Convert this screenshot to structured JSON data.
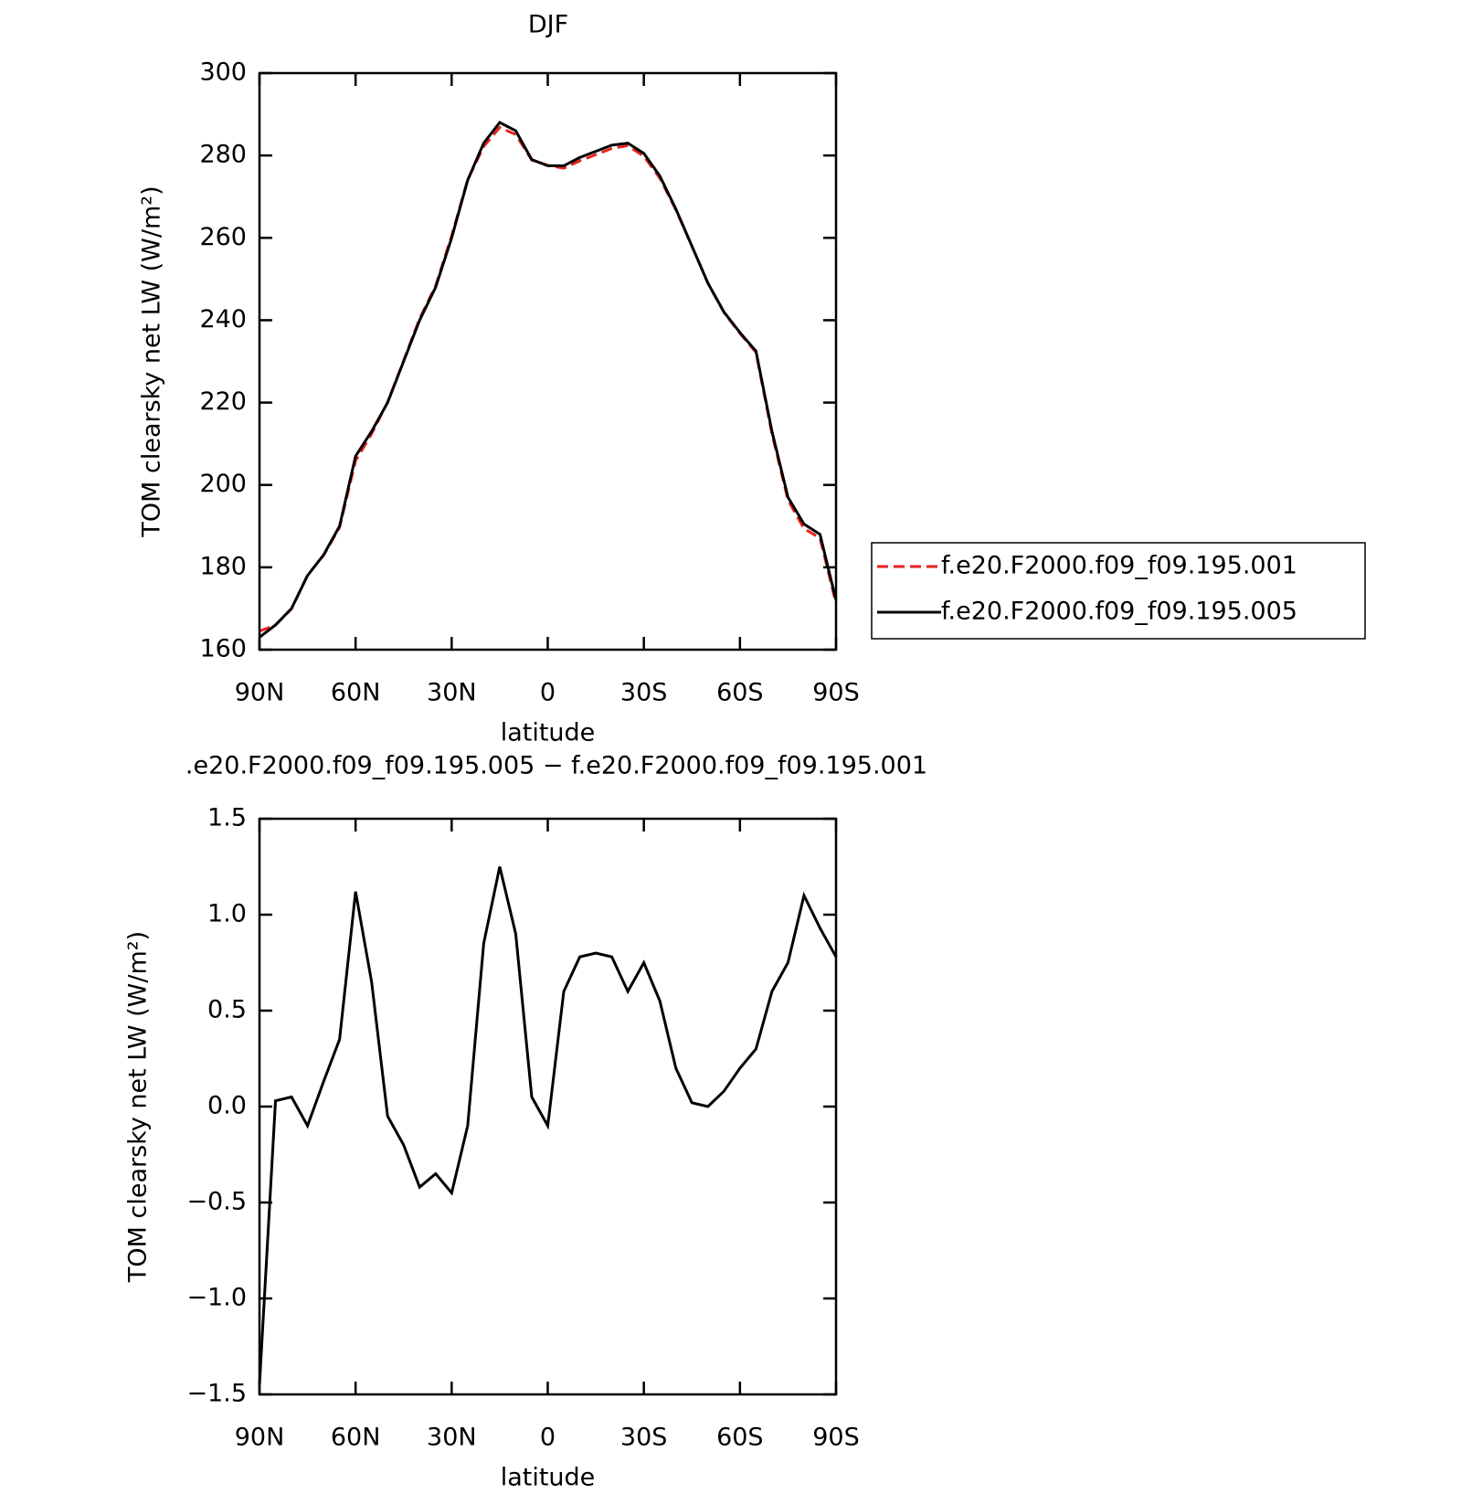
{
  "chart_data": [
    {
      "type": "line",
      "title": "DJF",
      "xlabel": "latitude",
      "ylabel": "TOM clearsky net LW (W/m²)",
      "x": [
        90,
        85,
        80,
        75,
        70,
        65,
        60,
        55,
        50,
        45,
        40,
        35,
        30,
        25,
        20,
        15,
        10,
        5,
        0,
        -5,
        -10,
        -15,
        -20,
        -25,
        -30,
        -35,
        -40,
        -45,
        -50,
        -55,
        -60,
        -65,
        -70,
        -75,
        -80,
        -85,
        -90
      ],
      "series": [
        {
          "name": "f.e20.F2000.f09_f09.195.001",
          "color": "#e8211c",
          "dash": true,
          "values": [
            164.5,
            166,
            169.9,
            178.1,
            182.9,
            189.7,
            205.9,
            212.4,
            220.1,
            230.2,
            240.4,
            248.4,
            260.5,
            274.1,
            282.2,
            286.8,
            285.1,
            278.9,
            277.6,
            276.9,
            278.7,
            280.2,
            281.7,
            282.4,
            279.8,
            274.5,
            266.8,
            258,
            249,
            241.9,
            236.8,
            232.2,
            212.4,
            196.3,
            189.4,
            187.1,
            171.2
          ]
        },
        {
          "name": "f.e20.F2000.f09_f09.195.005",
          "color": "#000000",
          "dash": false,
          "values": [
            163,
            166,
            170,
            178,
            183,
            190,
            207,
            213,
            220,
            230,
            240,
            248,
            260,
            274,
            283,
            288,
            286,
            279,
            277.5,
            277.5,
            279.5,
            281,
            282.5,
            283,
            280.5,
            275,
            267,
            258,
            249,
            242,
            237,
            232.5,
            213,
            197,
            190.5,
            188,
            172
          ]
        }
      ],
      "xlim": [
        90,
        -90
      ],
      "xticks": [
        {
          "value": 90,
          "label": "90N"
        },
        {
          "value": 60,
          "label": "60N"
        },
        {
          "value": 30,
          "label": "30N"
        },
        0,
        {
          "value": -30,
          "label": "30S"
        },
        {
          "value": -60,
          "label": "60S"
        },
        {
          "value": -90,
          "label": "90S"
        }
      ],
      "ylim": [
        160,
        300
      ],
      "yticks": [
        160,
        180,
        200,
        220,
        240,
        260,
        280,
        300
      ],
      "legend": "right"
    },
    {
      "type": "line",
      "title": ".e20.F2000.f09_f09.195.005 − f.e20.F2000.f09_f09.195.001",
      "xlabel": "latitude",
      "ylabel": "TOM clearsky net LW (W/m²)",
      "x": [
        90,
        85,
        80,
        75,
        70,
        65,
        60,
        55,
        50,
        45,
        40,
        35,
        30,
        25,
        20,
        15,
        10,
        5,
        0,
        -5,
        -10,
        -15,
        -20,
        -25,
        -30,
        -35,
        -40,
        -45,
        -50,
        -55,
        -60,
        -65,
        -70,
        -75,
        -80,
        -85,
        -90
      ],
      "series": [
        {
          "color": "#000000",
          "dash": false,
          "values": [
            -1.45,
            0.03,
            0.05,
            -0.1,
            0.13,
            0.35,
            1.12,
            0.65,
            -0.05,
            -0.2,
            -0.42,
            -0.35,
            -0.45,
            -0.1,
            0.85,
            1.25,
            0.9,
            0.05,
            -0.1,
            0.6,
            0.78,
            0.8,
            0.78,
            0.6,
            0.75,
            0.55,
            0.2,
            0.02,
            0,
            0.08,
            0.2,
            0.3,
            0.6,
            0.75,
            1.1,
            0.93,
            0.78
          ]
        }
      ],
      "xlim": [
        90,
        -90
      ],
      "xticks": [
        {
          "value": 90,
          "label": "90N"
        },
        {
          "value": 60,
          "label": "60N"
        },
        {
          "value": 30,
          "label": "30N"
        },
        0,
        {
          "value": -30,
          "label": "30S"
        },
        {
          "value": -60,
          "label": "60S"
        },
        {
          "value": -90,
          "label": "90S"
        }
      ],
      "ylim": [
        -1.5,
        1.5
      ],
      "yticks": [
        {
          "value": -1.5,
          "label": "−1.5"
        },
        {
          "value": -1,
          "label": "−1.0"
        },
        {
          "value": -0.5,
          "label": "−0.5"
        },
        {
          "value": 0,
          "label": "0.0"
        },
        0.5,
        {
          "value": 1,
          "label": "1.0"
        },
        1.5
      ]
    }
  ]
}
